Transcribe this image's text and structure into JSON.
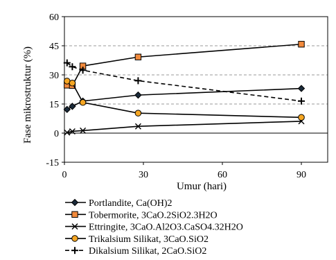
{
  "chart_data": {
    "type": "line",
    "title": "",
    "xlabel": "Umur (hari)",
    "ylabel": "Fase mikrostruktur (%)",
    "xlim": [
      0,
      100
    ],
    "ylim": [
      -15,
      60
    ],
    "xticks": [
      0,
      30,
      60,
      90
    ],
    "yticks": [
      -15,
      0,
      15,
      30,
      45,
      60
    ],
    "grid": "horizontal dashed",
    "legend_position": "bottom",
    "series": [
      {
        "name": "Portlandite, Ca(OH)2",
        "marker": "diamond",
        "color": "#000000",
        "fill": "#1a2a3a",
        "x": [
          1,
          3,
          7,
          28,
          90
        ],
        "y": [
          12.2,
          13.8,
          16.5,
          19.6,
          23.0
        ]
      },
      {
        "name": "Tobermorite, 3CaO.2SiO2.3H2O",
        "marker": "square",
        "color": "#000000",
        "fill": "#f28a3c",
        "x": [
          1,
          3,
          7,
          28,
          90
        ],
        "y": [
          24.7,
          24.5,
          34.6,
          39.2,
          45.8
        ]
      },
      {
        "name": "Ettringite, 3CaO.Al2O3.CaSO4.32H2O",
        "marker": "x",
        "color": "#000000",
        "fill": "none",
        "x": [
          1,
          3,
          7,
          28,
          90
        ],
        "y": [
          0.3,
          0.9,
          1.3,
          3.5,
          6.1
        ]
      },
      {
        "name": "Trikalsium Silikat, 3CaO.SiO2",
        "marker": "circle",
        "color": "#000000",
        "fill": "#f5a623",
        "x": [
          1,
          3,
          7,
          28,
          90
        ],
        "y": [
          26.8,
          25.8,
          15.8,
          10.3,
          8.1
        ]
      },
      {
        "name": "Dikalsium Silikat, 2CaO.SiO2",
        "marker": "plus",
        "color": "#000000",
        "fill": "none",
        "x": [
          1,
          3,
          7,
          28,
          90
        ],
        "y": [
          36.2,
          34.2,
          32.4,
          27.0,
          16.5
        ]
      }
    ]
  }
}
